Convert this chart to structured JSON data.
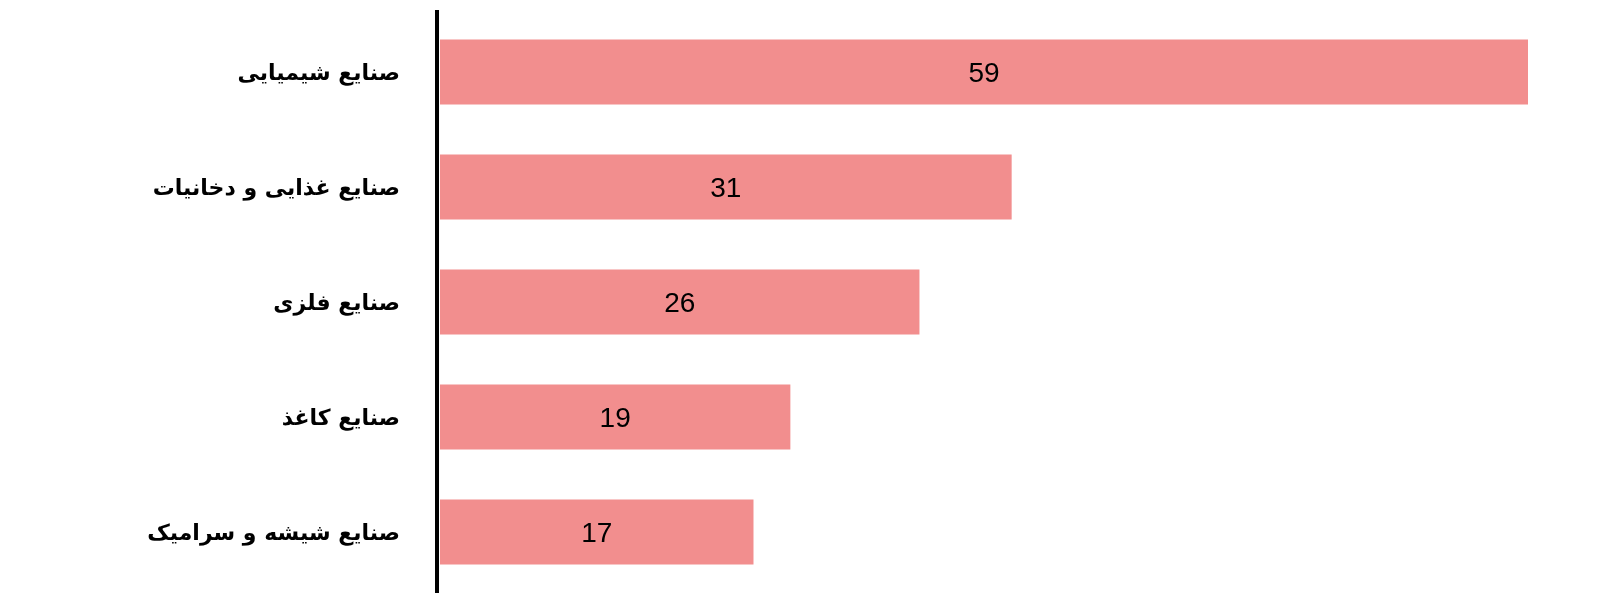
{
  "chart_data": {
    "type": "bar",
    "orientation": "horizontal",
    "categories": [
      "صنایع شیمیایی",
      "صنایع غذایی و دخانیات",
      "صنایع فلزی",
      "صنایع کاغذ",
      "صنایع شیشه و سرامیک"
    ],
    "values": [
      59,
      31,
      26,
      19,
      17
    ],
    "color": "#f28e8e",
    "xlim": [
      0,
      59
    ],
    "data_labels": true
  }
}
